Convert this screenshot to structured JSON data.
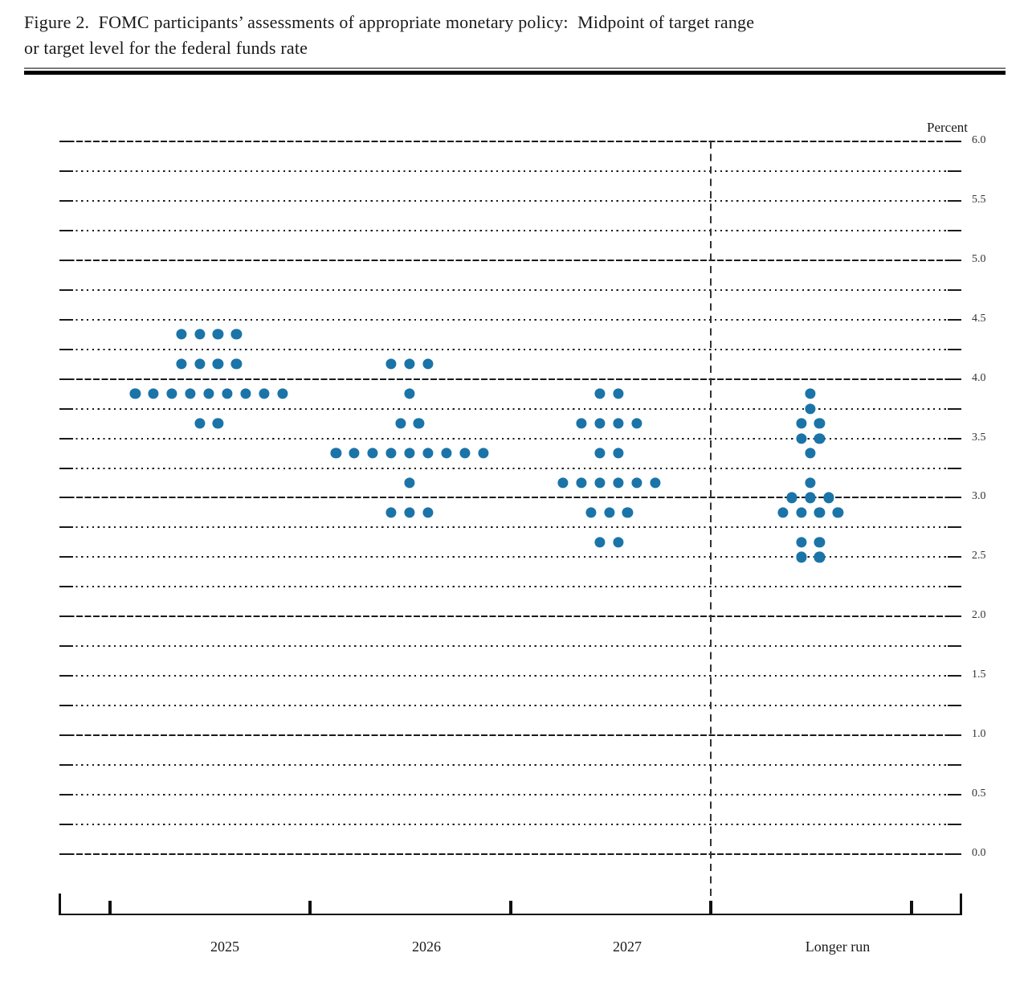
{
  "figure": {
    "title_lines": [
      "Figure 2.  FOMC participants’ assessments of appropriate monetary policy:  Midpoint of target range",
      "or target level for the federal funds rate"
    ]
  },
  "chart_data": {
    "type": "scatter",
    "title": "FOMC participants' assessments of appropriate monetary policy: Midpoint of target range or target level for the federal funds rate",
    "unit_label": "Percent",
    "xlabel": "",
    "ylabel": "Percent",
    "ylim": [
      0.0,
      6.0
    ],
    "ytick_minor_step": 0.25,
    "ytick_label_step": 0.5,
    "ytick_labels": [
      "6.0",
      "5.5",
      "5.0",
      "4.5",
      "4.0",
      "3.5",
      "3.0",
      "2.5",
      "2.0",
      "1.5",
      "1.0",
      "0.5",
      "0.0"
    ],
    "grid": "horizontal dotted line at every 0.25 percent; denser near-solid line at whole percents; dashed vertical separator before Longer run",
    "legend_position": "none",
    "dot_color": "#1b74a8",
    "categories": [
      "2025",
      "2026",
      "2027",
      "Longer run"
    ],
    "series": [
      {
        "name": "2025",
        "dots": [
          {
            "rate": 4.375,
            "count": 4
          },
          {
            "rate": 4.125,
            "count": 4
          },
          {
            "rate": 3.875,
            "count": 9
          },
          {
            "rate": 3.625,
            "count": 2
          }
        ]
      },
      {
        "name": "2026",
        "dots": [
          {
            "rate": 4.125,
            "count": 3
          },
          {
            "rate": 3.875,
            "count": 1
          },
          {
            "rate": 3.625,
            "count": 2
          },
          {
            "rate": 3.375,
            "count": 9
          },
          {
            "rate": 3.125,
            "count": 1
          },
          {
            "rate": 2.875,
            "count": 3
          }
        ]
      },
      {
        "name": "2027",
        "dots": [
          {
            "rate": 3.875,
            "count": 2
          },
          {
            "rate": 3.625,
            "count": 4
          },
          {
            "rate": 3.375,
            "count": 2
          },
          {
            "rate": 3.125,
            "count": 6
          },
          {
            "rate": 2.875,
            "count": 3
          },
          {
            "rate": 2.625,
            "count": 2
          }
        ]
      },
      {
        "name": "Longer run",
        "dots": [
          {
            "rate": 3.875,
            "count": 1
          },
          {
            "rate": 3.75,
            "count": 1
          },
          {
            "rate": 3.625,
            "count": 2
          },
          {
            "rate": 3.5,
            "count": 2
          },
          {
            "rate": 3.375,
            "count": 1
          },
          {
            "rate": 3.125,
            "count": 1
          },
          {
            "rate": 3.0,
            "count": 3
          },
          {
            "rate": 2.875,
            "count": 4
          },
          {
            "rate": 2.625,
            "count": 2
          },
          {
            "rate": 2.5,
            "count": 2
          }
        ]
      }
    ]
  }
}
